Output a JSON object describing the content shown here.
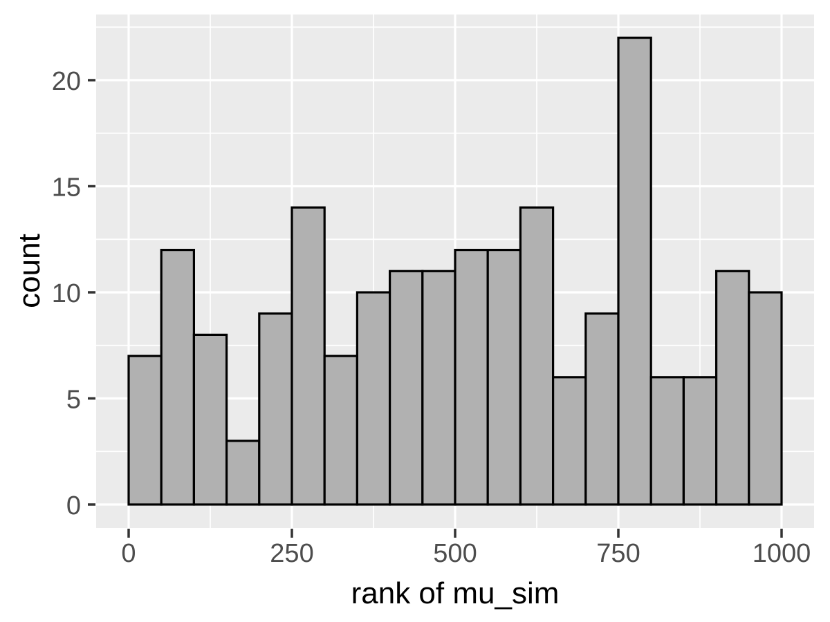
{
  "chart_data": {
    "type": "bar",
    "subtype": "histogram",
    "title": "",
    "xlabel": "rank of mu_sim",
    "ylabel": "count",
    "bin_start": 0,
    "bin_width": 50,
    "categories": [
      "0-50",
      "50-100",
      "100-150",
      "150-200",
      "200-250",
      "250-300",
      "300-350",
      "350-400",
      "400-450",
      "450-500",
      "500-550",
      "550-600",
      "600-650",
      "650-700",
      "700-750",
      "750-800",
      "800-850",
      "850-900",
      "900-950",
      "950-1000"
    ],
    "values": [
      7,
      12,
      8,
      3,
      9,
      14,
      7,
      10,
      11,
      11,
      12,
      12,
      14,
      6,
      9,
      22,
      6,
      6,
      11,
      10
    ],
    "x_ticks": [
      0,
      250,
      500,
      750,
      1000
    ],
    "y_ticks": [
      0,
      5,
      10,
      15,
      20
    ],
    "x_minor_gridlines": [
      125,
      375,
      625,
      875
    ],
    "y_minor_gridlines": [
      2.5,
      7.5,
      12.5,
      17.5,
      22.5
    ],
    "xlim": [
      -50,
      1050
    ],
    "ylim": [
      -1.1,
      23.1
    ],
    "grid": "on",
    "legend": "none",
    "colors": {
      "panel_background": "#EBEBEB",
      "gridline": "#FFFFFF",
      "bar_fill": "#B1B1B1",
      "bar_stroke": "#000000",
      "tick_mark": "#333333",
      "tick_label": "#4D4D4D",
      "axis_title": "#000000",
      "figure_background": "#FFFFFF"
    }
  }
}
